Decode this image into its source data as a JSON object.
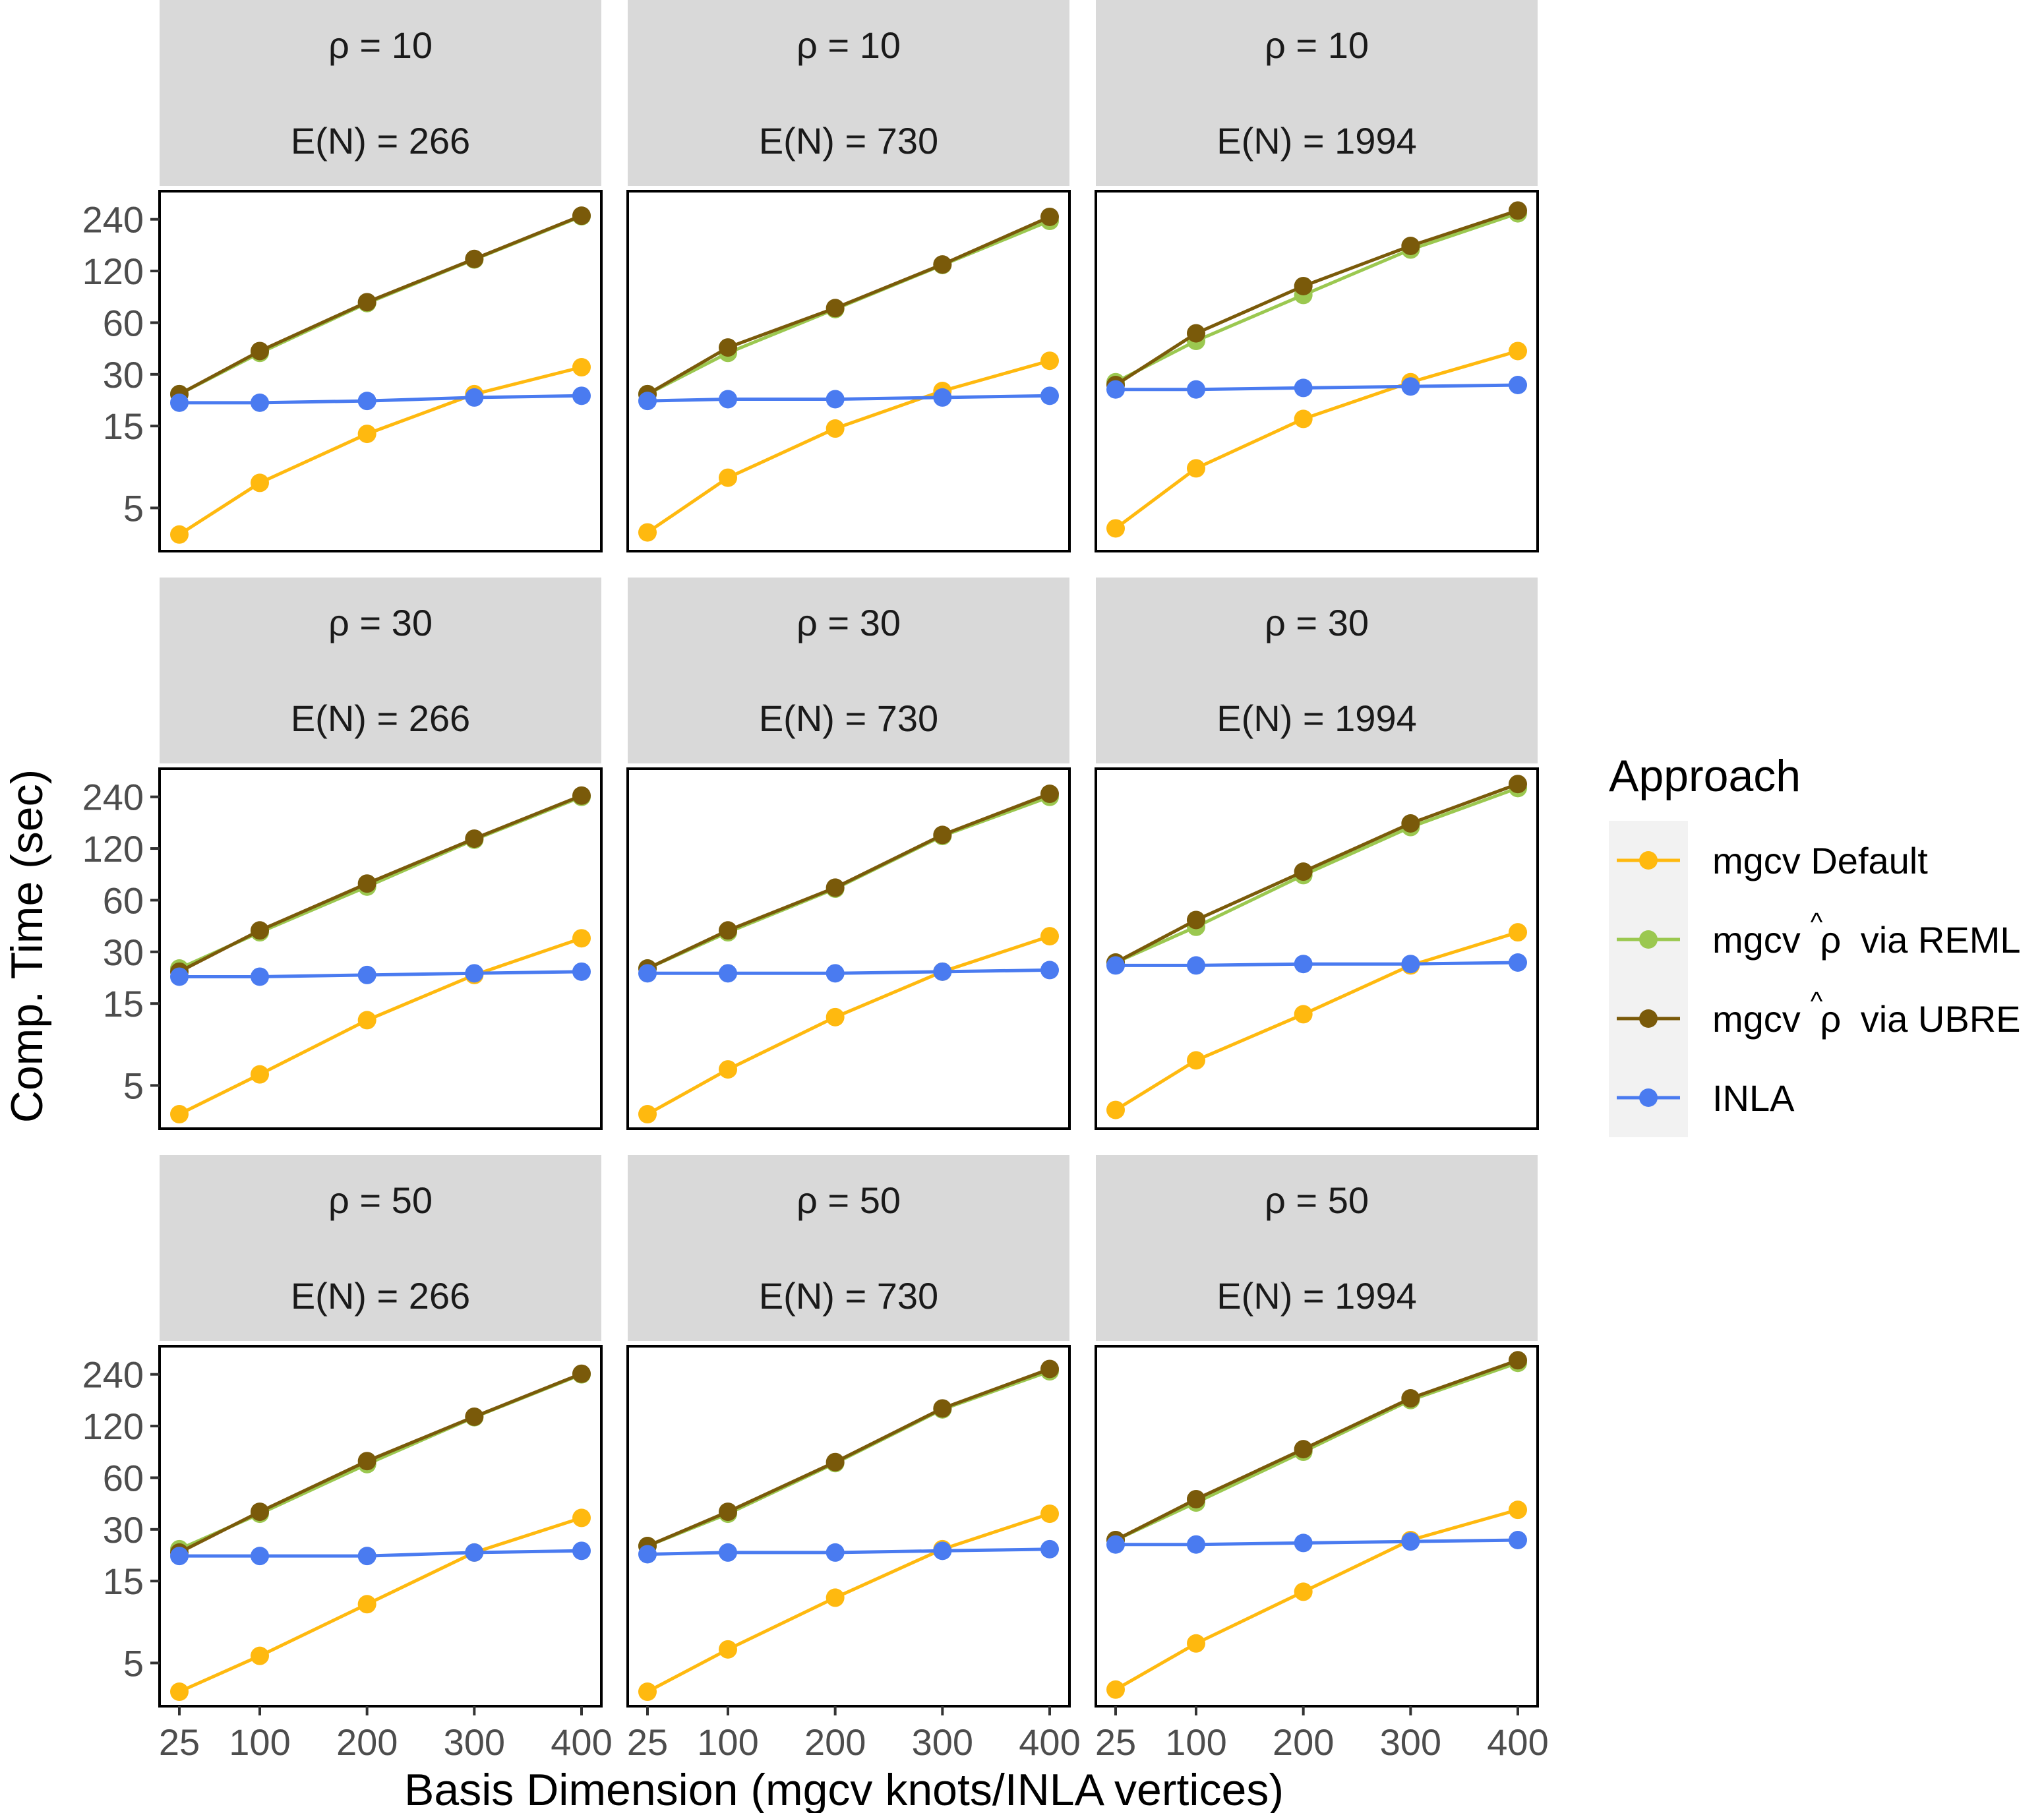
{
  "chart_data": {
    "type": "line",
    "facet_rows": [
      {
        "rho_label": "ρ = 10"
      },
      {
        "rho_label": "ρ = 30"
      },
      {
        "rho_label": "ρ = 50"
      }
    ],
    "facet_cols": [
      {
        "en_label": "E(N) = 266"
      },
      {
        "en_label": "E(N) = 730"
      },
      {
        "en_label": "E(N) = 1994"
      }
    ],
    "x": [
      25,
      100,
      200,
      300,
      400
    ],
    "x_ticks": [
      "25",
      "100",
      "200",
      "300",
      "400"
    ],
    "y_ticks": [
      "5",
      "15",
      "30",
      "60",
      "120",
      "240"
    ],
    "y_tick_values": [
      5,
      15,
      30,
      60,
      120,
      240
    ],
    "y_scale": "log",
    "ylim": [
      2.8,
      350
    ],
    "xlim": [
      25,
      400
    ],
    "xlabel": "Basis Dimension (mgcv knots/INLA vertices)",
    "ylabel": "Comp. Time (sec)",
    "legend": {
      "title": "Approach",
      "position": "right",
      "entries": [
        {
          "key": "default",
          "label": "mgcv Default",
          "color": "#FFB90F"
        },
        {
          "key": "reml",
          "prefix": "mgcv",
          "hat_symbol": "^",
          "symbol": "ρ",
          "suffix": "via REML",
          "color": "#9BC850"
        },
        {
          "key": "ubre",
          "prefix": "mgcv",
          "hat_symbol": "^",
          "symbol": "ρ",
          "suffix": "via UBRE",
          "color": "#7A5A0A"
        },
        {
          "key": "inla",
          "label": "INLA",
          "color": "#4A7BF0"
        }
      ]
    },
    "panels": [
      {
        "row": 0,
        "col": 0,
        "series": [
          {
            "name": "mgcv Default",
            "values": [
              3.5,
              7,
              13.5,
              23,
              33
            ]
          },
          {
            "name": "mgcv ρ via REML",
            "values": [
              23,
              40,
              78,
              140,
              250
            ]
          },
          {
            "name": "mgcv ρ via UBRE",
            "values": [
              23,
              41,
              79,
              141,
              252
            ]
          },
          {
            "name": "INLA",
            "values": [
              20.5,
              20.5,
              21,
              22,
              22.5
            ]
          }
        ]
      },
      {
        "row": 0,
        "col": 1,
        "series": [
          {
            "name": "mgcv Default",
            "values": [
              3.6,
              7.5,
              14.5,
              24,
              36
            ]
          },
          {
            "name": "mgcv ρ via REML",
            "values": [
              23,
              40,
              72,
              130,
              235
            ]
          },
          {
            "name": "mgcv ρ via UBRE",
            "values": [
              23,
              43,
              73,
              131,
              248
            ]
          },
          {
            "name": "INLA",
            "values": [
              21,
              21.5,
              21.5,
              22,
              22.5
            ]
          }
        ]
      },
      {
        "row": 0,
        "col": 2,
        "series": [
          {
            "name": "mgcv Default",
            "values": [
              3.8,
              8.5,
              16.5,
              27,
              41
            ]
          },
          {
            "name": "mgcv ρ via REML",
            "values": [
              27,
              47,
              87,
              160,
              260
            ]
          },
          {
            "name": "mgcv ρ via UBRE",
            "values": [
              26,
              52,
              98,
              168,
              270
            ]
          },
          {
            "name": "INLA",
            "values": [
              24.5,
              24.5,
              25,
              25.5,
              26
            ]
          }
        ]
      },
      {
        "row": 1,
        "col": 0,
        "series": [
          {
            "name": "mgcv Default",
            "values": [
              3.4,
              5.8,
              12,
              22,
              36
            ]
          },
          {
            "name": "mgcv ρ via REML",
            "values": [
              24,
              39,
              72,
              135,
              240
            ]
          },
          {
            "name": "mgcv ρ via UBRE",
            "values": [
              23,
              40,
              75,
              137,
              244
            ]
          },
          {
            "name": "INLA",
            "values": [
              21.5,
              21.5,
              22,
              22.5,
              23
            ]
          }
        ]
      },
      {
        "row": 1,
        "col": 1,
        "series": [
          {
            "name": "mgcv Default",
            "values": [
              3.4,
              6.2,
              12.5,
              23,
              37
            ]
          },
          {
            "name": "mgcv ρ via REML",
            "values": [
              24,
              39,
              70,
              142,
              240
            ]
          },
          {
            "name": "mgcv ρ via UBRE",
            "values": [
              24,
              40,
              71,
              144,
              250
            ]
          },
          {
            "name": "INLA",
            "values": [
              22.5,
              22.5,
              22.5,
              23,
              23.5
            ]
          }
        ]
      },
      {
        "row": 1,
        "col": 2,
        "series": [
          {
            "name": "mgcv Default",
            "values": [
              3.6,
              7,
              13,
              25,
              39
            ]
          },
          {
            "name": "mgcv ρ via REML",
            "values": [
              26,
              42,
              84,
              160,
              270
            ]
          },
          {
            "name": "mgcv ρ via UBRE",
            "values": [
              26,
              46,
              88,
              168,
              285
            ]
          },
          {
            "name": "INLA",
            "values": [
              25,
              25,
              25.5,
              25.5,
              26
            ]
          }
        ]
      },
      {
        "row": 2,
        "col": 0,
        "series": [
          {
            "name": "mgcv Default",
            "values": [
              3.4,
              5.5,
              11,
              22,
              35
            ]
          },
          {
            "name": "mgcv ρ via REML",
            "values": [
              23,
              37,
              72,
              135,
              240
            ]
          },
          {
            "name": "mgcv ρ via UBRE",
            "values": [
              22,
              38,
              75,
              136,
              242
            ]
          },
          {
            "name": "INLA",
            "values": [
              21,
              21,
              21,
              22,
              22.5
            ]
          }
        ]
      },
      {
        "row": 2,
        "col": 1,
        "series": [
          {
            "name": "mgcv Default",
            "values": [
              3.4,
              6,
              12,
              23,
              37
            ]
          },
          {
            "name": "mgcv ρ via REML",
            "values": [
              24,
              37,
              73,
              150,
              250
            ]
          },
          {
            "name": "mgcv ρ via UBRE",
            "values": [
              24,
              38,
              74,
              152,
              258
            ]
          },
          {
            "name": "INLA",
            "values": [
              21.5,
              22,
              22,
              22.5,
              23
            ]
          }
        ]
      },
      {
        "row": 2,
        "col": 2,
        "series": [
          {
            "name": "mgcv Default",
            "values": [
              3.5,
              6.5,
              13,
              26,
              39
            ]
          },
          {
            "name": "mgcv ρ via REML",
            "values": [
              26,
              43,
              85,
              170,
              280
            ]
          },
          {
            "name": "mgcv ρ via UBRE",
            "values": [
              26,
              45,
              88,
              174,
              290
            ]
          },
          {
            "name": "INLA",
            "values": [
              24.5,
              24.5,
              25,
              25.5,
              26
            ]
          }
        ]
      }
    ]
  }
}
